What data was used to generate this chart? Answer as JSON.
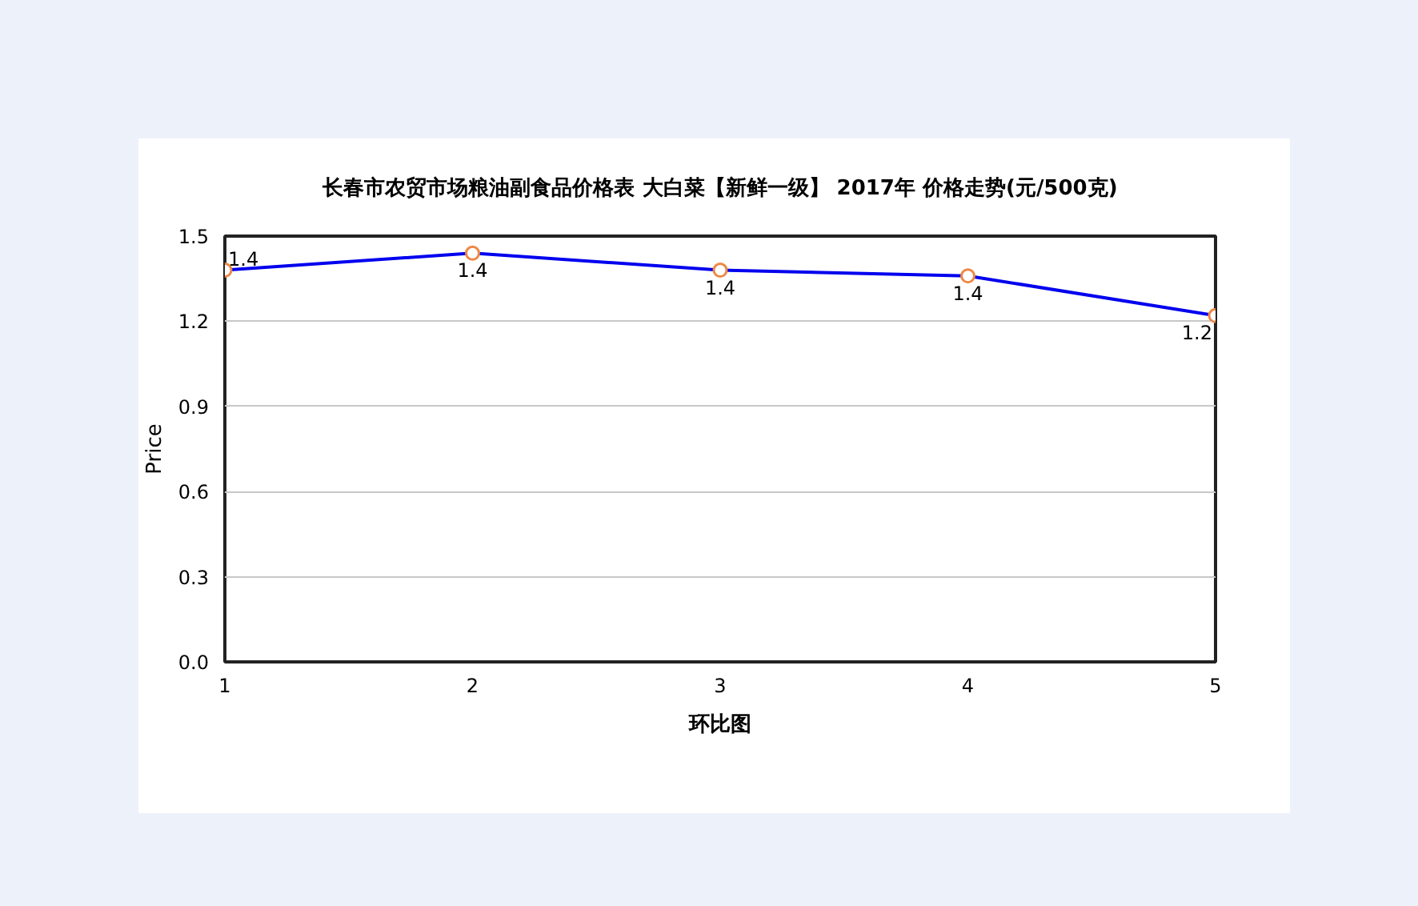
{
  "chart_data": {
    "type": "line",
    "title": "长春市农贸市场粮油副食品价格表 大白菜【新鲜一级】 2017年 价格走势(元/500克)",
    "xlabel": "环比图",
    "ylabel": "Price",
    "x": [
      1,
      2,
      3,
      4,
      5
    ],
    "series": [
      {
        "color": "#0000ee",
        "values": [
          1.38,
          1.44,
          1.38,
          1.36,
          1.22
        ],
        "value_labels": [
          "1.4",
          "1.4",
          "1.4",
          "1.4",
          "1.2"
        ]
      }
    ],
    "xlim": [
      1,
      5
    ],
    "ylim": [
      0,
      1.5
    ],
    "xticks": [
      1,
      2,
      3,
      4,
      5
    ],
    "yticks": [
      {
        "value": 0,
        "label": "0.0"
      },
      0.3,
      0.6,
      0.9,
      1.2,
      1.5
    ],
    "grid": "y",
    "marker": "circle",
    "line_style": "solid"
  }
}
